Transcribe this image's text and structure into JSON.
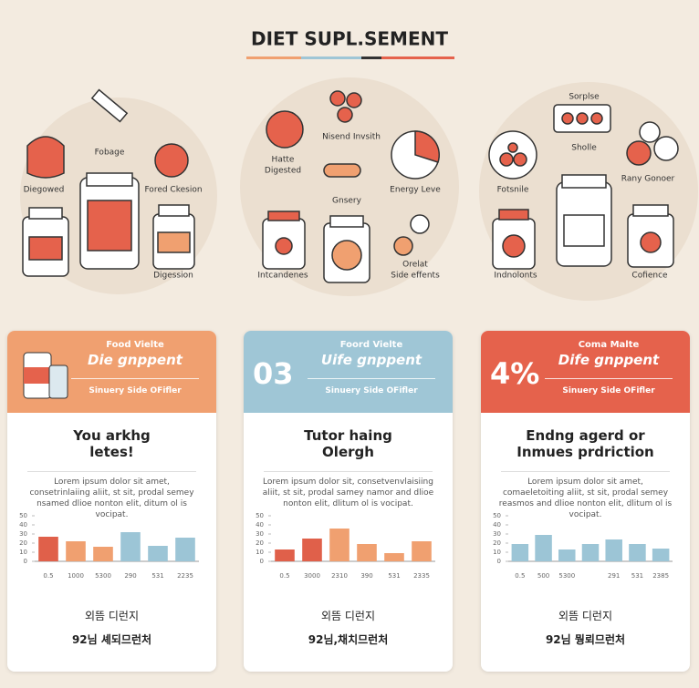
{
  "header": {
    "title": "DIET SUPL.SEMENT"
  },
  "clusters": [
    {
      "labels": [
        "Fobage",
        "Diegowed",
        "Fored Ckesion",
        "Digession"
      ]
    },
    {
      "labels": [
        "Nisend Invsith",
        "Hatte",
        "Digested",
        "Gnsery",
        "Energy Leve",
        "Intcandenes",
        "Orelat",
        "Side effents"
      ]
    },
    {
      "labels": [
        "Sorplse",
        "Sholle",
        "Fotsnile",
        "Rany Gonoer",
        "Indnolonts",
        "Cofience"
      ]
    }
  ],
  "cards": [
    {
      "color": "#f0a070",
      "kicker": "Food Vielte",
      "title": "Die gnppent",
      "subtitle": "Sinuery Side OFifler",
      "heading": [
        "You arkhg",
        "letes!"
      ],
      "paragraph": "Lorem ipsum dolor sit amet, consetrinlaiing aliit, st sit, prodal semey nsamed dlioe nonton elit, ditum ol is vocipat.",
      "chart": {
        "type": "bar",
        "ylim": [
          0,
          50
        ],
        "yticks": [
          0,
          10,
          20,
          30,
          40,
          50
        ],
        "categories": [
          "0.5",
          "1000",
          "5300",
          "290",
          "531",
          "2235"
        ],
        "values": [
          27,
          22,
          16,
          32,
          17,
          26
        ],
        "colors": [
          "#e0604a",
          "#f0a070",
          "#f0a070",
          "#9cc5d6",
          "#9cc5d6",
          "#9cc5d6"
        ]
      },
      "footer": [
        "외뜸 디런지",
        "92님 셰되므런처"
      ]
    },
    {
      "color": "#9fc6d6",
      "badge": "03",
      "kicker": "Foord Vielte",
      "title": "Uife gnppent",
      "subtitle": "Sinuery Side OFifler",
      "heading": [
        "Tutor haing",
        "Olergh"
      ],
      "paragraph": "Lorem ipsum dolor sit, consetvenvlaisiing aliit, st sit, prodal samey namor and dlioe nonton elit, dlitum ol is vocipat.",
      "chart": {
        "type": "bar",
        "ylim": [
          0,
          50
        ],
        "yticks": [
          0,
          10,
          20,
          30,
          40,
          50
        ],
        "categories": [
          "0.5",
          "3000",
          "2310",
          "390",
          "531",
          "2335"
        ],
        "values": [
          13,
          25,
          36,
          19,
          9,
          22
        ],
        "colors": [
          "#e0604a",
          "#e0604a",
          "#f0a070",
          "#f0a070",
          "#f0a070",
          "#f0a070"
        ]
      },
      "footer": [
        "외뜸 디런지",
        "92님,채치므런처"
      ]
    },
    {
      "color": "#e5624c",
      "badge": "4%",
      "kicker": "Coma Malte",
      "title": "Dife gnppent",
      "subtitle": "Sinuery Side OFifler",
      "heading": [
        "Endng agerd or",
        "Inmues prdriction"
      ],
      "paragraph": "Lorem ipsum dolor sit amet, comaeletoiting aliit, st sit, prodal semey reasmos and dlioe nonton elit, dlitum ol is vocipat.",
      "chart": {
        "type": "bar",
        "ylim": [
          0,
          50
        ],
        "yticks": [
          0,
          10,
          20,
          30,
          40,
          50
        ],
        "categories": [
          "0.5",
          "500",
          "5300",
          null,
          "291",
          "531",
          "2385"
        ],
        "values": [
          19,
          29,
          13,
          19,
          24,
          19,
          14
        ],
        "colors": [
          "#9cc5d6",
          "#9cc5d6",
          "#9cc5d6",
          "#9cc5d6",
          "#9cc5d6",
          "#9cc5d6",
          "#9cc5d6"
        ]
      },
      "footer": [
        "외뜸 디런지",
        "92님 뭥뢰므런처"
      ]
    }
  ]
}
